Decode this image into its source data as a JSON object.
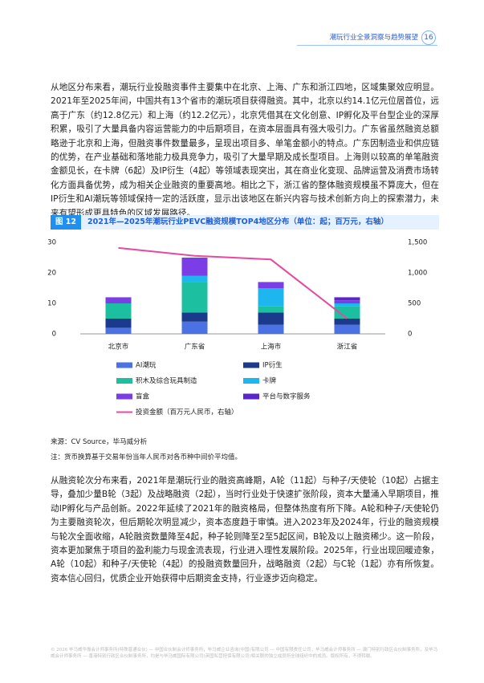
{
  "header": {
    "title": "潮玩行业全景洞察与趋势展望",
    "page": "16"
  },
  "paragraphs": [
    "从地区分布来看，潮玩行业投融资事件主要集中在北京、上海、广东和浙江四地，区域集聚效应明显。2021年至2025年间，中国共有13个省市的潮玩项目获得融资。其中，北京以约14.1亿元位居首位，远高于广东（约12.8亿元）和上海（约12.2亿元），北京凭借其在文化创意、IP孵化及平台型企业的深厚积累，吸引了大量具备内容运营能力的中后期项目，在资本层面具有强大吸引力。广东省虽然融资总额略逊于北京和上海，但融资事件数量最多，呈现出项目多、单笔金额小的特点。广东因制造业和供应链的优势，在产业基础和落地能力极具竞争力，吸引了大量早期及成长型项目。上海则以较高的单笔融资金额见长，在卡牌（6起）及IP衍生（4起）等领域表现突出，其在商业化变现、品牌运营及消费市场转化方面具备优势，成为相关企业融资的重要高地。相比之下，浙江省的整体融资规模虽不算庞大，但在IP衍生和AI潮玩等领域保持一定的活跃度，显示出该地区在新兴内容与技术创新方向上的探索潜力，未来有望形成更具特色的区域发展路径。",
    "从融资轮次分布来看，2021年是潮玩行业的融资高峰期，A轮（11起）与种子/天使轮（10起）占据主导，叠加少量B轮（3起）及战略融资（2起），当时行业处于快速扩张阶段，资本大量涌入早期项目，推动IP孵化与产品创新。2022年延续了2021年的融资格局，但整体热度有所下降。A轮和种子/天使轮仍为主要融资轮次，但后期轮次明显减少，资本态度趋于审慎。进入2023年及2024年，行业的融资规模与轮次全面收缩，A轮融资数量降至4起，种子轮则降至2至5起区间，B轮及以上融资稀少。这一阶段，资本更加聚焦于项目的盈利能力与现金流表现，行业进入理性发展阶段。2025年，行业出现回暖迹象，A轮（10起）和种子/天使轮（4起）的投融资数量回升，战略融资（2起）与C轮（1起）亦有所恢复。资本信心回归，优质企业开始获得中后期资金支持，行业逐步迈向稳定。"
  ],
  "chart_data": {
    "type": "bar",
    "stacked": true,
    "figure_label": "图 12",
    "title": "2021年—2025年潮玩行业PEVC融资规模TOP4地区分布（单位：起；百万元，右轴）",
    "categories": [
      "北京市",
      "广东省",
      "上海市",
      "浙江省"
    ],
    "series": [
      {
        "name": "AI潮玩",
        "color": "#4a72e4",
        "values": [
          2,
          4,
          3,
          3
        ]
      },
      {
        "name": "IP衍生",
        "color": "#1c3a8c",
        "values": [
          3,
          3,
          4,
          2
        ]
      },
      {
        "name": "积木及综合玩具制造",
        "color": "#1cbf9f",
        "values": [
          5,
          10,
          2,
          4
        ]
      },
      {
        "name": "卡牌",
        "color": "#1eb6ef",
        "values": [
          0,
          2,
          6,
          1
        ]
      },
      {
        "name": "盲盒",
        "color": "#7b3ee6",
        "values": [
          2,
          6,
          2,
          1
        ]
      },
      {
        "name": "平台与数字服务",
        "color": "#5a26c9",
        "values": [
          0,
          0,
          0,
          1
        ]
      },
      {
        "name": "投资金额（百万元人民币，右轴）",
        "color": "#e8489f",
        "type": "line",
        "axis": "y2",
        "values": [
          1410,
          1280,
          1220,
          250
        ]
      }
    ],
    "ylim": [
      0,
      30
    ],
    "yticks": [
      0,
      10,
      20,
      30
    ],
    "y2lim": [
      0,
      1500
    ],
    "y2ticks": [
      0,
      500,
      {
        "value": 1000,
        "label": "1,000"
      },
      {
        "value": 1500,
        "label": "1,500"
      }
    ]
  },
  "source": "来源：CV Source，毕马威分析",
  "note": "注：货币换算基于交易年份当年人民币对各币种中间价平均值。",
  "footer": "© 2026 毕马威华振会计师事务所(特殊普通合伙) — 中国合伙制会计师事务所，毕马威企业咨询(中国)有限公司 — 中国有限责任公司，毕马威会计师事务所 — 澳门特别行政区合伙制事务所，及毕马威会计师事务所 — 香港特别行政区合伙制事务所，均是与毕马威国际有限公司(英国私营担保有限公司)相关联的独立成员所全球组织中的成员。版权所有，不得转载。"
}
